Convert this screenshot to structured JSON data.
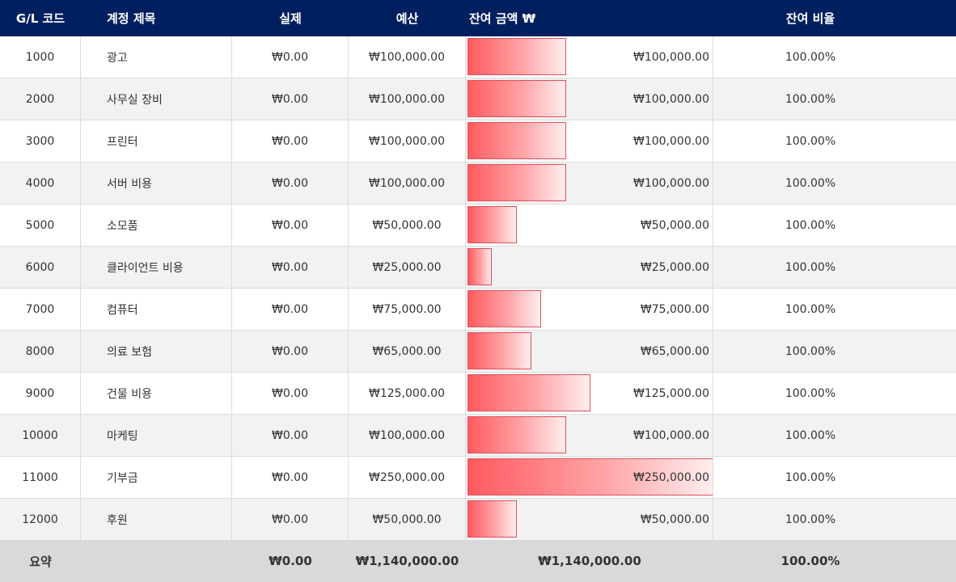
{
  "columns": {
    "code": "G/L 코드",
    "title": "계정 제목",
    "actual": "실제",
    "budget": "예산",
    "remain_amount": "잔여 금액 ₩",
    "remain_ratio": "잔여 비율"
  },
  "rows": [
    {
      "code": "1000",
      "title": "광고",
      "actual": "₩0.00",
      "budget": "₩100,000.00",
      "remain": "₩100,000.00",
      "remain_value": 100000,
      "ratio": "100.00%"
    },
    {
      "code": "2000",
      "title": "사무실 장비",
      "actual": "₩0.00",
      "budget": "₩100,000.00",
      "remain": "₩100,000.00",
      "remain_value": 100000,
      "ratio": "100.00%"
    },
    {
      "code": "3000",
      "title": "프린터",
      "actual": "₩0.00",
      "budget": "₩100,000.00",
      "remain": "₩100,000.00",
      "remain_value": 100000,
      "ratio": "100.00%"
    },
    {
      "code": "4000",
      "title": "서버 비용",
      "actual": "₩0.00",
      "budget": "₩100,000.00",
      "remain": "₩100,000.00",
      "remain_value": 100000,
      "ratio": "100.00%"
    },
    {
      "code": "5000",
      "title": "소모품",
      "actual": "₩0.00",
      "budget": "₩50,000.00",
      "remain": "₩50,000.00",
      "remain_value": 50000,
      "ratio": "100.00%"
    },
    {
      "code": "6000",
      "title": "클라이언트 비용",
      "actual": "₩0.00",
      "budget": "₩25,000.00",
      "remain": "₩25,000.00",
      "remain_value": 25000,
      "ratio": "100.00%"
    },
    {
      "code": "7000",
      "title": "컴퓨터",
      "actual": "₩0.00",
      "budget": "₩75,000.00",
      "remain": "₩75,000.00",
      "remain_value": 75000,
      "ratio": "100.00%"
    },
    {
      "code": "8000",
      "title": "의료 보험",
      "actual": "₩0.00",
      "budget": "₩65,000.00",
      "remain": "₩65,000.00",
      "remain_value": 65000,
      "ratio": "100.00%"
    },
    {
      "code": "9000",
      "title": "건물 비용",
      "actual": "₩0.00",
      "budget": "₩125,000.00",
      "remain": "₩125,000.00",
      "remain_value": 125000,
      "ratio": "100.00%"
    },
    {
      "code": "10000",
      "title": "마케팅",
      "actual": "₩0.00",
      "budget": "₩100,000.00",
      "remain": "₩100,000.00",
      "remain_value": 100000,
      "ratio": "100.00%"
    },
    {
      "code": "11000",
      "title": "기부금",
      "actual": "₩0.00",
      "budget": "₩250,000.00",
      "remain": "₩250,000.00",
      "remain_value": 250000,
      "ratio": "100.00%"
    },
    {
      "code": "12000",
      "title": "후원",
      "actual": "₩0.00",
      "budget": "₩50,000.00",
      "remain": "₩50,000.00",
      "remain_value": 50000,
      "ratio": "100.00%"
    }
  ],
  "summary": {
    "label": "요약",
    "actual": "₩0.00",
    "budget": "₩1,140,000.00",
    "remain": "₩1,140,000.00",
    "ratio": "100.00%"
  },
  "colors": {
    "header_bg": "#001f5f",
    "bar_start": "#ff5a5f",
    "bar_end": "#ffeeef"
  }
}
